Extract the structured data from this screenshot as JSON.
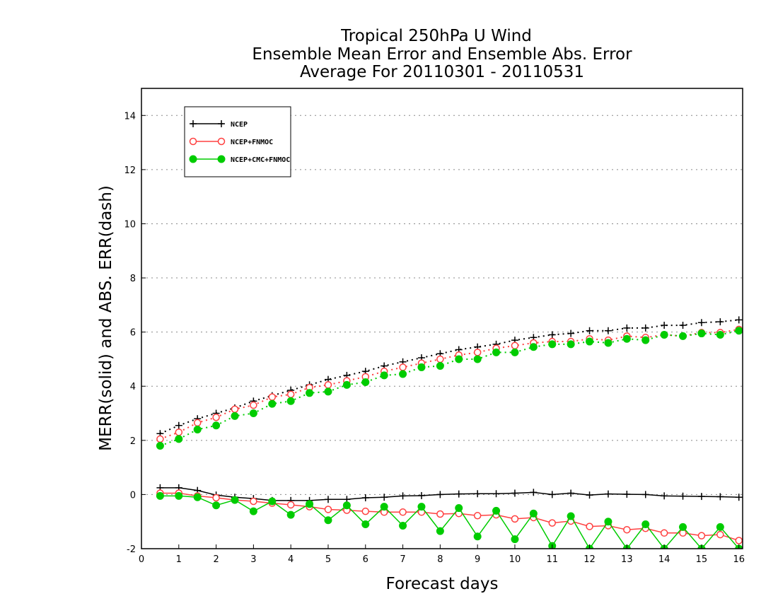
{
  "chart_data": {
    "type": "line",
    "title": [
      "Tropical 250hPa U Wind",
      "Ensemble Mean Error and Ensemble Abs. Error",
      "Average For 20110301 - 20110531"
    ],
    "xlabel": "Forecast days",
    "ylabel": "MERR(solid) and ABS. ERR(dash)",
    "xlim": [
      0,
      16.1
    ],
    "ylim": [
      -2,
      15
    ],
    "xticks": [
      0,
      1,
      2,
      3,
      4,
      5,
      6,
      7,
      8,
      9,
      10,
      11,
      12,
      13,
      14,
      15,
      16
    ],
    "yticks": [
      -2,
      0,
      2,
      4,
      6,
      8,
      10,
      12,
      14
    ],
    "grid": "horizontal-dotted",
    "legend_position": "top-left",
    "x": [
      0.5,
      1,
      1.5,
      2,
      2.5,
      3,
      3.5,
      4,
      4.5,
      5,
      5.5,
      6,
      6.5,
      7,
      7.5,
      8,
      8.5,
      9,
      9.5,
      10,
      10.5,
      11,
      11.5,
      12,
      12.5,
      13,
      13.5,
      14,
      14.5,
      15,
      15.5,
      16
    ],
    "series": [
      {
        "name": "NCEP",
        "color": "#000000",
        "marker": "plus",
        "mean_error": [
          0.25,
          0.25,
          0.15,
          -0.02,
          -0.1,
          -0.15,
          -0.22,
          -0.22,
          -0.22,
          -0.18,
          -0.18,
          -0.12,
          -0.1,
          -0.05,
          -0.04,
          0.0,
          0.02,
          0.03,
          0.03,
          0.05,
          0.08,
          0.0,
          0.05,
          -0.02,
          0.02,
          0.01,
          0.0,
          -0.05,
          -0.06,
          -0.07,
          -0.08,
          -0.1
        ],
        "abs_error": [
          2.25,
          2.55,
          2.8,
          3.0,
          3.2,
          3.45,
          3.65,
          3.85,
          4.05,
          4.25,
          4.4,
          4.55,
          4.75,
          4.9,
          5.05,
          5.2,
          5.35,
          5.45,
          5.55,
          5.7,
          5.8,
          5.9,
          5.95,
          6.05,
          6.05,
          6.15,
          6.15,
          6.25,
          6.25,
          6.35,
          6.38,
          6.45
        ]
      },
      {
        "name": "NCEP+FNMOC",
        "color": "#ff4040",
        "marker": "open-circle",
        "mean_error": [
          0.05,
          0.05,
          -0.05,
          -0.12,
          -0.2,
          -0.25,
          -0.32,
          -0.38,
          -0.45,
          -0.55,
          -0.58,
          -0.62,
          -0.65,
          -0.65,
          -0.65,
          -0.72,
          -0.7,
          -0.78,
          -0.75,
          -0.9,
          -0.85,
          -1.05,
          -0.98,
          -1.18,
          -1.15,
          -1.3,
          -1.25,
          -1.42,
          -1.42,
          -1.52,
          -1.48,
          -1.7
        ],
        "abs_error": [
          2.05,
          2.3,
          2.65,
          2.85,
          3.15,
          3.3,
          3.6,
          3.7,
          3.95,
          4.05,
          4.2,
          4.35,
          4.55,
          4.7,
          4.85,
          5.0,
          5.15,
          5.25,
          5.4,
          5.5,
          5.6,
          5.65,
          5.65,
          5.75,
          5.7,
          5.85,
          5.8,
          5.9,
          5.85,
          5.98,
          5.98,
          6.1
        ]
      },
      {
        "name": "NCEP+CMC+FNMOC",
        "color": "#00cc00",
        "marker": "filled-circle",
        "mean_error": [
          -0.05,
          -0.05,
          -0.1,
          -0.4,
          -0.2,
          -0.62,
          -0.25,
          -0.75,
          -0.35,
          -0.95,
          -0.4,
          -1.1,
          -0.45,
          -1.15,
          -0.45,
          -1.35,
          -0.5,
          -1.55,
          -0.6,
          -1.65,
          -0.7,
          -1.9,
          -0.8,
          -2.0,
          -1.0,
          -2.0,
          -1.1,
          -2.0,
          -1.2,
          -2.0,
          -1.2,
          -2.0
        ],
        "abs_error": [
          1.8,
          2.05,
          2.4,
          2.55,
          2.9,
          3.0,
          3.35,
          3.45,
          3.75,
          3.8,
          4.05,
          4.15,
          4.4,
          4.45,
          4.7,
          4.75,
          5.0,
          5.0,
          5.25,
          5.25,
          5.45,
          5.55,
          5.55,
          5.65,
          5.6,
          5.75,
          5.7,
          5.9,
          5.85,
          5.95,
          5.9,
          6.05
        ]
      }
    ]
  }
}
